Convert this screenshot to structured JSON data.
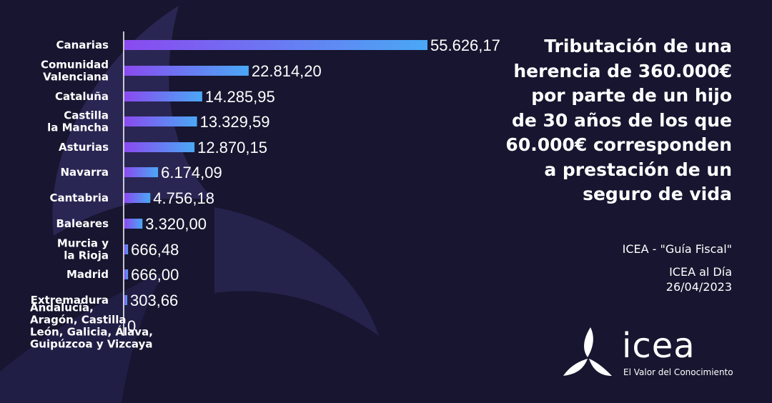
{
  "title": "Tributación de una herencia de 360.000€ por parte de un hijo de 30 años de los que 60.000€ corresponden a prestación de un seguro de vida",
  "title_lines": [
    "Tributación de una",
    "herencia de 360.000€",
    "por parte de un hijo",
    "de 30 años de los que",
    "60.000€ corresponden",
    "a prestación de un",
    "seguro de vida"
  ],
  "source_line1": "ICEA - \"Guía Fiscal\"",
  "source_line2": "ICEA al Día",
  "source_line3": "26/04/2023",
  "logo": {
    "word": "icea",
    "tagline": "El Valor del Conocimiento",
    "icon": "icea-star-logo-icon"
  },
  "colors": {
    "background": "#17152f",
    "bar_start": "#8a4af0",
    "bar_end": "#4aa8f5",
    "text": "#ffffff"
  },
  "chart_data": {
    "type": "bar",
    "orientation": "horizontal",
    "categories": [
      [
        "Canarias"
      ],
      [
        "Comunidad",
        "Valenciana"
      ],
      [
        "Cataluña"
      ],
      [
        "Castilla",
        "la Mancha"
      ],
      [
        "Asturias"
      ],
      [
        "Navarra"
      ],
      [
        "Cantabria"
      ],
      [
        "Baleares"
      ],
      [
        "Murcia y",
        "la Rioja"
      ],
      [
        "Madrid"
      ],
      [
        "Extremadura"
      ],
      [
        "Andalucía,",
        "Aragón, Castilla",
        "León, Galicia, Álava,",
        "Guipúzcoa y Vizcaya"
      ]
    ],
    "values": [
      55626.17,
      22814.2,
      14285.95,
      13329.59,
      12870.15,
      6174.09,
      4756.18,
      3320.0,
      666.48,
      666.0,
      303.66,
      0
    ],
    "value_labels": [
      "55.626,17",
      "22.814,20",
      "14.285,95",
      "13.329,59",
      "12.870,15",
      "6.174,09",
      "4.756,18",
      "3.320,00",
      "666,48",
      "666,00",
      "303,66",
      "0"
    ],
    "xlim": [
      0,
      55626.17
    ],
    "legend": "none",
    "grid": false
  }
}
